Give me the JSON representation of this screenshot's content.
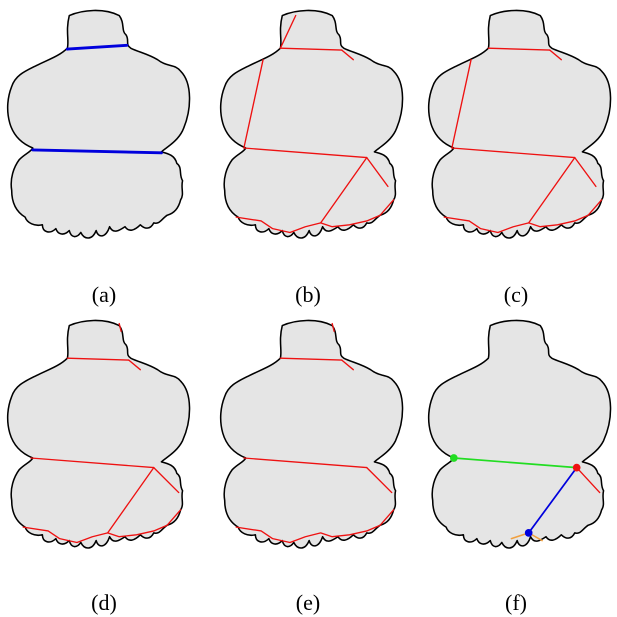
{
  "panels": [
    {
      "label": "(a)",
      "variant": "a"
    },
    {
      "label": "(b)",
      "variant": "b"
    },
    {
      "label": "(c)",
      "variant": "c"
    },
    {
      "label": "(d)",
      "variant": "d"
    },
    {
      "label": "(e)",
      "variant": "e"
    },
    {
      "label": "(f)",
      "variant": "f"
    }
  ],
  "colors": {
    "background": "#ffffff",
    "shape_fill": "#e5e5e5",
    "outline": "#000000",
    "cut_blue": "#0000dd",
    "cut_red": "#ee1111",
    "cut_green": "#22dd22",
    "cut_orange": "#f0a040"
  }
}
